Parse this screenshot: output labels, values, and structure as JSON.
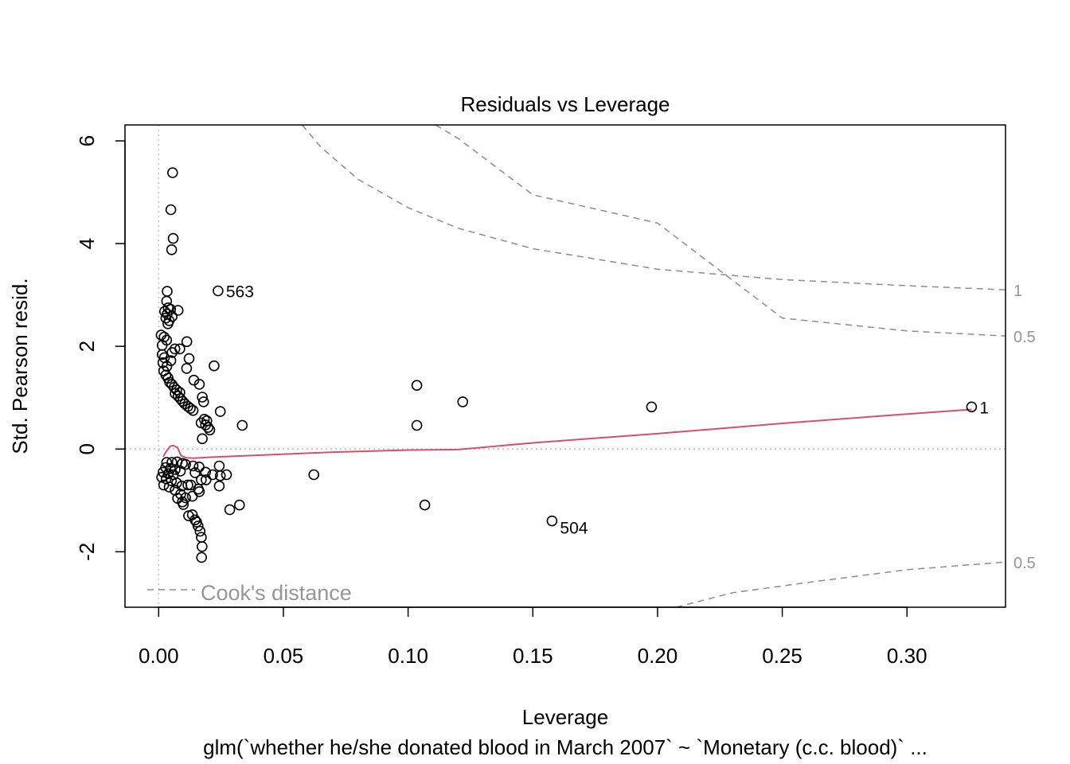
{
  "chart_data": {
    "type": "scatter",
    "title": "Residuals vs Leverage",
    "xlabel": "Leverage",
    "ylabel": "Std. Pearson resid.",
    "subtitle": "glm(`whether he/she donated blood in March 2007` ~ `Monetary (c.c. blood)`  ...",
    "xlim": [
      -0.0135,
      0.3395
    ],
    "ylim": [
      -3.08,
      6.31
    ],
    "x_ticks": [
      0.0,
      0.05,
      0.1,
      0.15,
      0.2,
      0.25,
      0.3
    ],
    "x_tick_labels": [
      "0.00",
      "0.05",
      "0.10",
      "0.15",
      "0.20",
      "0.25",
      "0.30"
    ],
    "y_ticks": [
      -2,
      0,
      2,
      4,
      6
    ],
    "y_tick_labels": [
      "-2",
      "0",
      "2",
      "4",
      "6"
    ],
    "points": [
      [
        0.0056,
        5.38
      ],
      [
        0.0049,
        4.66
      ],
      [
        0.0058,
        4.1
      ],
      [
        0.0052,
        3.88
      ],
      [
        0.0034,
        3.07
      ],
      [
        0.0238,
        3.08
      ],
      [
        0.0032,
        2.88
      ],
      [
        0.0038,
        2.75
      ],
      [
        0.0048,
        2.72
      ],
      [
        0.0078,
        2.7
      ],
      [
        0.0024,
        2.68
      ],
      [
        0.0034,
        2.63
      ],
      [
        0.0054,
        2.58
      ],
      [
        0.0029,
        2.55
      ],
      [
        0.0042,
        2.5
      ],
      [
        0.0037,
        2.44
      ],
      [
        0.001,
        2.22
      ],
      [
        0.0022,
        2.18
      ],
      [
        0.0032,
        2.12
      ],
      [
        0.0113,
        2.09
      ],
      [
        0.0014,
        2.02
      ],
      [
        0.0065,
        1.95
      ],
      [
        0.0085,
        1.95
      ],
      [
        0.0054,
        1.88
      ],
      [
        0.0014,
        1.84
      ],
      [
        0.0023,
        1.78
      ],
      [
        0.0122,
        1.76
      ],
      [
        0.0049,
        1.72
      ],
      [
        0.0222,
        1.62
      ],
      [
        0.0017,
        1.68
      ],
      [
        0.0033,
        1.61
      ],
      [
        0.0112,
        1.57
      ],
      [
        0.002,
        1.52
      ],
      [
        0.0029,
        1.44
      ],
      [
        0.0038,
        1.38
      ],
      [
        0.0141,
        1.34
      ],
      [
        0.0044,
        1.3
      ],
      [
        0.0053,
        1.26
      ],
      [
        0.0163,
        1.26
      ],
      [
        0.0062,
        1.2
      ],
      [
        0.0072,
        1.15
      ],
      [
        0.0085,
        1.1
      ],
      [
        0.0066,
        1.08
      ],
      [
        0.0078,
        1.03
      ],
      [
        0.0175,
        1.01
      ],
      [
        0.0087,
        0.98
      ],
      [
        0.0096,
        0.93
      ],
      [
        0.018,
        0.92
      ],
      [
        0.0105,
        0.88
      ],
      [
        0.0117,
        0.83
      ],
      [
        0.0127,
        0.79
      ],
      [
        0.0138,
        0.75
      ],
      [
        0.0247,
        0.73
      ],
      [
        0.0183,
        0.58
      ],
      [
        0.0193,
        0.55
      ],
      [
        0.017,
        0.51
      ],
      [
        0.0188,
        0.47
      ],
      [
        0.0335,
        0.46
      ],
      [
        0.0198,
        0.42
      ],
      [
        0.0205,
        0.37
      ],
      [
        0.0175,
        0.2
      ],
      [
        0.1035,
        1.24
      ],
      [
        0.1219,
        0.92
      ],
      [
        0.1035,
        0.46
      ],
      [
        0.1976,
        0.82
      ],
      [
        0.3259,
        0.82
      ],
      [
        0.0032,
        -0.26
      ],
      [
        0.0053,
        -0.26
      ],
      [
        0.0074,
        -0.25
      ],
      [
        0.0095,
        -0.28
      ],
      [
        0.0108,
        -0.3
      ],
      [
        0.0138,
        -0.33
      ],
      [
        0.0162,
        -0.35
      ],
      [
        0.0243,
        -0.33
      ],
      [
        0.0028,
        -0.36
      ],
      [
        0.0047,
        -0.38
      ],
      [
        0.0066,
        -0.4
      ],
      [
        0.0087,
        -0.43
      ],
      [
        0.0018,
        -0.45
      ],
      [
        0.0039,
        -0.48
      ],
      [
        0.0059,
        -0.5
      ],
      [
        0.0146,
        -0.46
      ],
      [
        0.0188,
        -0.45
      ],
      [
        0.0216,
        -0.5
      ],
      [
        0.0272,
        -0.5
      ],
      [
        0.0247,
        -0.52
      ],
      [
        0.0622,
        -0.5
      ],
      [
        0.0012,
        -0.55
      ],
      [
        0.003,
        -0.58
      ],
      [
        0.0051,
        -0.62
      ],
      [
        0.0072,
        -0.66
      ],
      [
        0.0093,
        -0.72
      ],
      [
        0.0117,
        -0.7
      ],
      [
        0.0171,
        -0.6
      ],
      [
        0.019,
        -0.6
      ],
      [
        0.0129,
        -0.7
      ],
      [
        0.0159,
        -0.78
      ],
      [
        0.0243,
        -0.72
      ],
      [
        0.002,
        -0.7
      ],
      [
        0.0042,
        -0.74
      ],
      [
        0.0066,
        -0.8
      ],
      [
        0.0088,
        -0.88
      ],
      [
        0.0108,
        -0.95
      ],
      [
        0.0135,
        -0.92
      ],
      [
        0.0163,
        -0.83
      ],
      [
        0.0076,
        -0.96
      ],
      [
        0.0095,
        -1.03
      ],
      [
        0.0099,
        -1.08
      ],
      [
        0.0285,
        -1.18
      ],
      [
        0.0324,
        -1.09
      ],
      [
        0.1067,
        -1.09
      ],
      [
        0.012,
        -1.3
      ],
      [
        0.0135,
        -1.28
      ],
      [
        0.0146,
        -1.38
      ],
      [
        0.0152,
        -1.42
      ],
      [
        0.0158,
        -1.5
      ],
      [
        0.0166,
        -1.6
      ],
      [
        0.0171,
        -1.72
      ],
      [
        0.0174,
        -1.9
      ],
      [
        0.0172,
        -2.11
      ],
      [
        0.1577,
        -1.4
      ]
    ],
    "point_labels": [
      {
        "x": 0.0238,
        "y": 3.08,
        "label": "563"
      },
      {
        "x": 0.1577,
        "y": -1.4,
        "label": "504"
      },
      {
        "x": 0.3259,
        "y": 0.82,
        "label": "1"
      }
    ],
    "smoother": {
      "color": "#d4506e",
      "x": [
        0.0018,
        0.003,
        0.0045,
        0.0058,
        0.0075,
        0.009,
        0.011,
        0.014,
        0.02,
        0.04,
        0.07,
        0.1,
        0.12,
        0.15,
        0.2,
        0.25,
        0.3,
        0.3259
      ],
      "y": [
        -0.15,
        -0.05,
        0.05,
        0.07,
        0.03,
        -0.13,
        -0.17,
        -0.18,
        -0.16,
        -0.12,
        -0.06,
        -0.02,
        -0.01,
        0.12,
        0.3,
        0.5,
        0.68,
        0.77
      ]
    },
    "reference_lines": {
      "h": 0,
      "v": 0,
      "color": "#bebebe"
    },
    "cooks_distance": {
      "color": "#8c8c8c",
      "legend": "Cook's distance",
      "levels": [
        {
          "label": "1",
          "upper": [
            [
              0.0575,
              6.31
            ],
            [
              0.065,
              5.88
            ],
            [
              0.08,
              5.25
            ],
            [
              0.1,
              4.7
            ],
            [
              0.12,
              4.3
            ],
            [
              0.15,
              3.9
            ],
            [
              0.2,
              3.5
            ],
            [
              0.25,
              3.3
            ],
            [
              0.3,
              3.18
            ],
            [
              0.3395,
              3.1
            ]
          ]
        },
        {
          "label": "0.5",
          "upper": [
            [
              0.111,
              6.31
            ],
            [
              0.12,
              6.05
            ],
            [
              0.15,
              4.95
            ],
            [
              0.2,
              4.4
            ],
            [
              0.25,
              2.55
            ],
            [
              0.3,
              2.3
            ],
            [
              0.3395,
              2.2
            ]
          ]
        },
        {
          "label": "0.5",
          "lower": [
            [
              0.2075,
              -3.08
            ],
            [
              0.23,
              -2.8
            ],
            [
              0.26,
              -2.6
            ],
            [
              0.3,
              -2.35
            ],
            [
              0.3395,
              -2.2
            ]
          ]
        }
      ]
    },
    "legend": "bottom-left",
    "grid": false
  }
}
